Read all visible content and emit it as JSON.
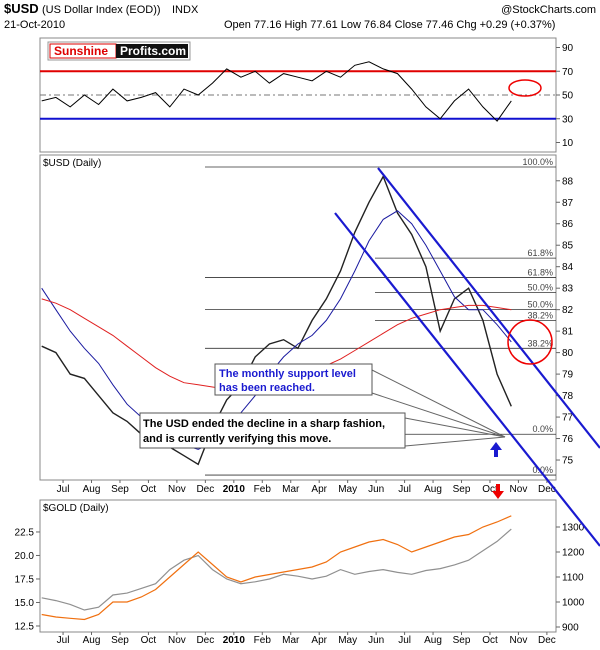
{
  "header": {
    "symbol": "$USD",
    "name": "(US Dollar Index (EOD))",
    "exchange": "INDX",
    "date": "21-Oct-2010",
    "quote": "Open 77.16  High 77.61  Low 76.84  Close 77.46  Chg +0.29 (+0.37%)",
    "copyright": "@StockCharts.com",
    "logo": [
      "Sunshine",
      "Profits.com"
    ]
  },
  "notes": [
    [
      "The monthly support level",
      "has been reached."
    ],
    [
      "The USD ended the decline in a sharp fashion,",
      "and is currently verifying this move."
    ]
  ],
  "chart_data": [
    {
      "type": "line",
      "xlim": [
        0.19,
        18.32
      ],
      "ylim": [
        2,
        98
      ],
      "yticks": [
        10,
        30,
        50,
        70,
        90
      ],
      "x": [
        0.25,
        0.75,
        1.25,
        1.75,
        2.25,
        2.75,
        3.25,
        3.75,
        4.25,
        4.75,
        5.25,
        5.75,
        6.25,
        6.75,
        7.25,
        7.75,
        8.25,
        8.75,
        9.25,
        9.75,
        10.25,
        10.75,
        11.25,
        11.75,
        12.25,
        12.75,
        13.25,
        13.75,
        14.25,
        14.75,
        15.25,
        15.75,
        16.25,
        16.75
      ],
      "series": [
        {
          "color": "#000000",
          "values": [
            45,
            48,
            40,
            50,
            42,
            55,
            45,
            48,
            52,
            40,
            55,
            50,
            60,
            72,
            65,
            70,
            60,
            68,
            65,
            62,
            70,
            65,
            75,
            78,
            72,
            68,
            55,
            40,
            30,
            45,
            55,
            40,
            28,
            45
          ]
        }
      ],
      "reference_lines": [
        {
          "value": 70,
          "color": "#e00000",
          "width": 2
        },
        {
          "value": 30,
          "color": "#1010d0",
          "width": 2
        },
        {
          "value": 50,
          "color": "#777777",
          "width": 1,
          "dashed": true
        }
      ]
    },
    {
      "type": "line",
      "title": "$USD (Daily)",
      "xlim": [
        0.19,
        18.32
      ],
      "ylim": [
        74.07,
        89.2
      ],
      "yticks": [
        75,
        76,
        77,
        78,
        79,
        80,
        81,
        82,
        83,
        84,
        85,
        86,
        87,
        88
      ],
      "xticks": [
        {
          "value": 1,
          "label": "Jul"
        },
        {
          "value": 2,
          "label": "Aug"
        },
        {
          "value": 3,
          "label": "Sep"
        },
        {
          "value": 4,
          "label": "Oct"
        },
        {
          "value": 5,
          "label": "Nov"
        },
        {
          "value": 6,
          "label": "Dec"
        },
        {
          "value": 7,
          "label": "2010",
          "bold": true
        },
        {
          "value": 8,
          "label": "Feb"
        },
        {
          "value": 9,
          "label": "Mar"
        },
        {
          "value": 10,
          "label": "Apr"
        },
        {
          "value": 11,
          "label": "May"
        },
        {
          "value": 12,
          "label": "Jun"
        },
        {
          "value": 13,
          "label": "Jul"
        },
        {
          "value": 14,
          "label": "Aug"
        },
        {
          "value": 15,
          "label": "Sep"
        },
        {
          "value": 16,
          "label": "Oct"
        },
        {
          "value": 17,
          "label": "Nov"
        },
        {
          "value": 18,
          "label": "Dec"
        }
      ],
      "x": [
        0.25,
        0.75,
        1.25,
        1.75,
        2.25,
        2.75,
        3.25,
        3.75,
        4.25,
        4.75,
        5.25,
        5.75,
        6.25,
        6.75,
        7.25,
        7.75,
        8.25,
        8.75,
        9.25,
        9.75,
        10.25,
        10.75,
        11.25,
        11.75,
        12.25,
        12.75,
        13.25,
        13.75,
        14.25,
        14.75,
        15.25,
        15.75,
        16.25,
        16.75
      ],
      "series": [
        {
          "color": "#222222",
          "width": 1.4,
          "values": [
            80.3,
            80.0,
            79.0,
            78.8,
            78.0,
            77.2,
            76.8,
            76.2,
            76.0,
            75.6,
            75.2,
            74.8,
            76.5,
            77.8,
            78.5,
            79.8,
            80.4,
            80.6,
            80.2,
            81.5,
            82.5,
            83.8,
            85.6,
            87.0,
            88.2,
            86.5,
            85.5,
            84.0,
            81.0,
            82.5,
            83.0,
            81.5,
            79.0,
            77.5
          ]
        },
        {
          "color": "#1a1aa0",
          "width": 1,
          "values": [
            83.0,
            82.0,
            81.0,
            80.2,
            79.5,
            78.5,
            77.6,
            77.0,
            76.5,
            76.0,
            75.7,
            75.5,
            75.8,
            76.5,
            77.2,
            78.0,
            79.0,
            79.8,
            80.4,
            80.8,
            81.5,
            82.5,
            83.8,
            85.2,
            86.2,
            86.6,
            86.0,
            85.0,
            83.8,
            82.6,
            82.0,
            82.0,
            81.3,
            80.5
          ]
        },
        {
          "color": "#e02020",
          "width": 1,
          "values": [
            82.5,
            82.3,
            82.0,
            81.6,
            81.2,
            80.8,
            80.3,
            79.8,
            79.3,
            78.9,
            78.6,
            78.5,
            78.4,
            78.3,
            78.2,
            78.2,
            78.3,
            78.5,
            78.8,
            79.1,
            79.4,
            79.7,
            80.1,
            80.5,
            80.9,
            81.3,
            81.6,
            81.8,
            82.0,
            82.1,
            82.2,
            82.2,
            82.1,
            82.0
          ]
        }
      ],
      "levels": [
        {
          "value": 88.64,
          "label": "100.0%"
        },
        {
          "value": 84.4,
          "label": "61.8%"
        },
        {
          "value": 83.5,
          "label": "61.8%"
        },
        {
          "value": 82.8,
          "label": "50.0%"
        },
        {
          "value": 82.0,
          "label": "50.0%"
        },
        {
          "value": 81.5,
          "label": "38.2%"
        },
        {
          "value": 80.2,
          "label": "38.2%"
        },
        {
          "value": 76.2,
          "label": "0.0%"
        },
        {
          "value": 74.3,
          "label": "0.0%"
        }
      ]
    },
    {
      "type": "line",
      "title": "$GOLD (Daily)",
      "xlim": [
        0.19,
        18.32
      ],
      "ylim": [
        11.86,
        25.9
      ],
      "yticks": [
        12.5,
        {
          "value": 15,
          "label": "15.0"
        },
        17.5,
        {
          "value": 20,
          "label": "20.0"
        },
        22.5
      ],
      "y2lim": [
        880,
        1408
      ],
      "y2ticks": [
        900,
        1000,
        1100,
        1200,
        1300
      ],
      "xticks": [
        {
          "value": 1,
          "label": "Jul"
        },
        {
          "value": 2,
          "label": "Aug"
        },
        {
          "value": 3,
          "label": "Sep"
        },
        {
          "value": 4,
          "label": "Oct"
        },
        {
          "value": 5,
          "label": "Nov"
        },
        {
          "value": 6,
          "label": "Dec"
        },
        {
          "value": 7,
          "label": "2010",
          "bold": true
        },
        {
          "value": 8,
          "label": "Feb"
        },
        {
          "value": 9,
          "label": "Mar"
        },
        {
          "value": 10,
          "label": "Apr"
        },
        {
          "value": 11,
          "label": "May"
        },
        {
          "value": 12,
          "label": "Jun"
        },
        {
          "value": 13,
          "label": "Jul"
        },
        {
          "value": 14,
          "label": "Aug"
        },
        {
          "value": 15,
          "label": "Sep"
        },
        {
          "value": 16,
          "label": "Oct"
        },
        {
          "value": 17,
          "label": "Nov"
        },
        {
          "value": 18,
          "label": "Dec"
        }
      ],
      "x": [
        0.25,
        0.75,
        1.25,
        1.75,
        2.25,
        2.75,
        3.25,
        3.75,
        4.25,
        4.75,
        5.25,
        5.75,
        6.25,
        6.75,
        7.25,
        7.75,
        8.25,
        8.75,
        9.25,
        9.75,
        10.25,
        10.75,
        11.25,
        11.75,
        12.25,
        12.75,
        13.25,
        13.75,
        14.25,
        14.75,
        15.25,
        15.75,
        16.25,
        16.75
      ],
      "series": [
        {
          "color": "#909090",
          "width": 1.2,
          "values": [
            15.5,
            15.2,
            14.8,
            14.2,
            14.5,
            15.8,
            16.0,
            16.5,
            17.0,
            18.5,
            19.5,
            20.0,
            18.5,
            17.5,
            17.0,
            17.2,
            17.5,
            18.0,
            17.8,
            17.5,
            17.8,
            18.5,
            18.0,
            18.3,
            18.5,
            18.2,
            18.0,
            18.4,
            18.6,
            19.0,
            19.5,
            20.5,
            21.5,
            22.8
          ]
        },
        {
          "color": "#f07010",
          "width": 1.2,
          "axis": "y2",
          "values": [
            950,
            940,
            935,
            930,
            950,
            1000,
            1000,
            1020,
            1050,
            1100,
            1150,
            1200,
            1150,
            1100,
            1080,
            1100,
            1110,
            1120,
            1130,
            1140,
            1160,
            1200,
            1220,
            1240,
            1250,
            1230,
            1200,
            1220,
            1240,
            1260,
            1270,
            1300,
            1320,
            1345
          ]
        }
      ]
    }
  ]
}
